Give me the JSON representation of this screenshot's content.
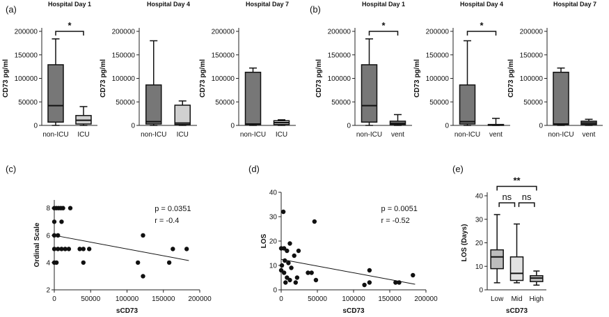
{
  "chart_data": [
    {
      "id": "a1",
      "type": "box",
      "panel_label": "(a)",
      "title": "Hospital Day 1",
      "ylabel": "CD73 pg/ml",
      "yticks": [
        "0",
        "50000",
        "100000",
        "150000",
        "200000"
      ],
      "ylim": [
        0,
        200000
      ],
      "categories": [
        "non-ICU",
        "ICU"
      ],
      "colors": [
        "#777777",
        "#d0d0d0"
      ],
      "boxes": [
        {
          "min": 0,
          "q1": 7000,
          "median": 42000,
          "q3": 129000,
          "max": 184000
        },
        {
          "min": 0,
          "q1": 3000,
          "median": 11000,
          "q3": 21000,
          "max": 40000
        }
      ],
      "significance": [
        {
          "a": 0,
          "b": 1,
          "label": "*",
          "y": 200000
        }
      ]
    },
    {
      "id": "a4",
      "type": "box",
      "title": "Hospital Day 4",
      "ylabel": "CD73 pg/ml",
      "yticks": [
        "0",
        "50000",
        "100000",
        "150000",
        "200000"
      ],
      "ylim": [
        0,
        200000
      ],
      "categories": [
        "non-ICU",
        "ICU"
      ],
      "colors": [
        "#777777",
        "#d0d0d0"
      ],
      "boxes": [
        {
          "min": 0,
          "q1": 3000,
          "median": 8000,
          "q3": 86000,
          "max": 180000
        },
        {
          "min": 0,
          "q1": 2000,
          "median": 5000,
          "q3": 43000,
          "max": 52000
        }
      ],
      "significance": []
    },
    {
      "id": "a7",
      "type": "box",
      "title": "Hospital Day 7",
      "ylabel": "CD73 pg/ml",
      "yticks": [
        "0",
        "50000",
        "100000",
        "150000",
        "200000"
      ],
      "ylim": [
        0,
        200000
      ],
      "categories": [
        "non-ICU",
        "ICU"
      ],
      "colors": [
        "#777777",
        "#d0d0d0"
      ],
      "boxes": [
        {
          "min": 0,
          "q1": 2000,
          "median": 3000,
          "q3": 113000,
          "max": 122000
        },
        {
          "min": 0,
          "q1": 2000,
          "median": 6000,
          "q3": 10000,
          "max": 12000
        }
      ],
      "significance": []
    },
    {
      "id": "b1",
      "type": "box",
      "panel_label": "(b)",
      "title": "Hospital Day 1",
      "ylabel": "CD73 pg/ml",
      "yticks": [
        "0",
        "50000",
        "100000",
        "150000",
        "200000"
      ],
      "ylim": [
        0,
        200000
      ],
      "categories": [
        "non-ICU",
        "vent"
      ],
      "colors": [
        "#777777",
        "#777777"
      ],
      "boxes": [
        {
          "min": 0,
          "q1": 7000,
          "median": 42000,
          "q3": 129000,
          "max": 184000
        },
        {
          "min": 0,
          "q1": 2000,
          "median": 4000,
          "q3": 9000,
          "max": 23000
        }
      ],
      "significance": [
        {
          "a": 0,
          "b": 1,
          "label": "*",
          "y": 200000
        }
      ]
    },
    {
      "id": "b4",
      "type": "box",
      "title": "Hospital Day 4",
      "ylabel": "CD73 pg/ml",
      "yticks": [
        "0",
        "50000",
        "100000",
        "150000",
        "200000"
      ],
      "ylim": [
        0,
        200000
      ],
      "categories": [
        "non-ICU",
        "vent"
      ],
      "colors": [
        "#777777",
        "#777777"
      ],
      "boxes": [
        {
          "min": 0,
          "q1": 3000,
          "median": 8000,
          "q3": 86000,
          "max": 180000
        },
        {
          "min": 0,
          "q1": 0,
          "median": 1000,
          "q3": 2000,
          "max": 15000
        }
      ],
      "significance": [
        {
          "a": 0,
          "b": 1,
          "label": "*",
          "y": 200000
        }
      ]
    },
    {
      "id": "b7",
      "type": "box",
      "title": "Hospital Day 7",
      "ylabel": "CD73 pg/ml",
      "yticks": [
        "0",
        "50000",
        "100000",
        "150000",
        "200000"
      ],
      "ylim": [
        0,
        200000
      ],
      "categories": [
        "non-ICU",
        "vent"
      ],
      "colors": [
        "#777777",
        "#777777"
      ],
      "boxes": [
        {
          "min": 0,
          "q1": 2000,
          "median": 3000,
          "q3": 113000,
          "max": 122000
        },
        {
          "min": 0,
          "q1": 2000,
          "median": 5000,
          "q3": 9000,
          "max": 13000
        }
      ],
      "significance": []
    },
    {
      "id": "c",
      "type": "scatter",
      "panel_label": "(c)",
      "xlabel": "sCD73",
      "ylabel": "Ordinal Scale",
      "xlim": [
        0,
        200000
      ],
      "ylim": [
        2,
        8.6
      ],
      "xticks": [
        0,
        50000,
        100000,
        150000,
        200000
      ],
      "yticks": [
        2,
        4,
        6,
        8
      ],
      "points": [
        [
          0,
          8
        ],
        [
          3000,
          8
        ],
        [
          6000,
          8
        ],
        [
          9000,
          8
        ],
        [
          12000,
          8
        ],
        [
          22000,
          8
        ],
        [
          0,
          7
        ],
        [
          10000,
          7
        ],
        [
          0,
          6
        ],
        [
          5000,
          6
        ],
        [
          0,
          5
        ],
        [
          5000,
          5
        ],
        [
          10000,
          5
        ],
        [
          15000,
          5
        ],
        [
          20000,
          5
        ],
        [
          35000,
          5
        ],
        [
          40000,
          5
        ],
        [
          48000,
          5
        ],
        [
          0,
          4
        ],
        [
          3000,
          4
        ],
        [
          40000,
          4
        ],
        [
          115000,
          4
        ],
        [
          122000,
          6
        ],
        [
          122000,
          3
        ],
        [
          158000,
          4
        ],
        [
          163000,
          5
        ],
        [
          182000,
          5
        ]
      ],
      "trend": {
        "x1": 0,
        "y1": 6.0,
        "x2": 185000,
        "y2": 4.15
      },
      "annotations": [
        "p = 0.0351",
        "r = -0.4"
      ]
    },
    {
      "id": "d",
      "type": "scatter",
      "panel_label": "(d)",
      "xlabel": "sCD73",
      "ylabel": "LOS",
      "xlim": [
        0,
        200000
      ],
      "ylim": [
        0,
        40
      ],
      "xticks": [
        0,
        50000,
        100000,
        150000,
        200000
      ],
      "yticks": [
        0,
        10,
        20,
        30,
        40
      ],
      "points": [
        [
          3000,
          32
        ],
        [
          0,
          17
        ],
        [
          4000,
          17
        ],
        [
          8000,
          16
        ],
        [
          12000,
          19
        ],
        [
          18000,
          14
        ],
        [
          24000,
          16
        ],
        [
          5000,
          12
        ],
        [
          10000,
          11
        ],
        [
          1000,
          10
        ],
        [
          0,
          8
        ],
        [
          14000,
          9
        ],
        [
          4000,
          7
        ],
        [
          8000,
          5
        ],
        [
          12000,
          4
        ],
        [
          20000,
          3
        ],
        [
          6000,
          3
        ],
        [
          22000,
          5
        ],
        [
          37000,
          7
        ],
        [
          42000,
          7
        ],
        [
          46000,
          28
        ],
        [
          48000,
          4
        ],
        [
          115000,
          2
        ],
        [
          122000,
          3
        ],
        [
          122000,
          8
        ],
        [
          158000,
          3
        ],
        [
          163000,
          3
        ],
        [
          182000,
          6
        ]
      ],
      "trend": {
        "x1": 0,
        "y1": 12.5,
        "x2": 185000,
        "y2": 2.3
      },
      "annotations": [
        "p = 0.0051",
        "r = -0.52"
      ]
    },
    {
      "id": "e",
      "type": "box",
      "panel_label": "(e)",
      "xlabel": "sCD73",
      "ylabel": "LOS  (Days)",
      "ylim": [
        0,
        40
      ],
      "yticks": [
        "0",
        "10",
        "20",
        "30",
        "40"
      ],
      "categories": [
        "Low",
        "Mid",
        "High"
      ],
      "colors": [
        "#bdbdbd",
        "#e2e2e2",
        "#bdbdbd"
      ],
      "boxes": [
        {
          "min": 3,
          "q1": 9,
          "median": 14,
          "q3": 17,
          "max": 32
        },
        {
          "min": 3,
          "q1": 4,
          "median": 7,
          "q3": 14,
          "max": 28
        },
        {
          "min": 2,
          "q1": 3.5,
          "median": 5,
          "q3": 6,
          "max": 8
        }
      ],
      "significance": [
        {
          "a": 0,
          "b": 2,
          "label": "**",
          "y": 44
        },
        {
          "a": 0,
          "b": 1,
          "label": "ns",
          "y": 37
        },
        {
          "a": 1,
          "b": 2,
          "label": "ns",
          "y": 37
        }
      ]
    }
  ]
}
